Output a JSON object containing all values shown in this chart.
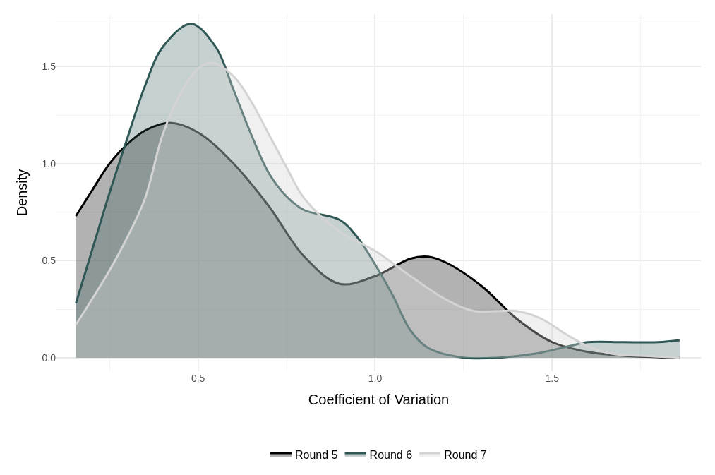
{
  "chart_data": {
    "type": "area",
    "xlabel": "Coefficient of Variation",
    "ylabel": "Density",
    "xlim": [
      0.1,
      1.92
    ],
    "xticks": [
      0.5,
      {
        "value": 1,
        "label": "1.0"
      },
      1.5
    ],
    "ylim": [
      -0.07,
      1.77
    ],
    "yticks": [
      {
        "value": 0,
        "label": "0.0"
      },
      0.5,
      {
        "value": 1,
        "label": "1.0"
      },
      1.5
    ],
    "grid": true,
    "legend": "bottom",
    "series": [
      {
        "name": "Round 5",
        "color": "#000000",
        "x": [
          0.155,
          0.2,
          0.25,
          0.3,
          0.35,
          0.42,
          0.5,
          0.6,
          0.7,
          0.8,
          0.9,
          1.0,
          1.1,
          1.15,
          1.2,
          1.3,
          1.4,
          1.5,
          1.6,
          1.7,
          1.86
        ],
        "values": [
          0.73,
          0.86,
          1.0,
          1.1,
          1.17,
          1.21,
          1.16,
          1.0,
          0.78,
          0.52,
          0.38,
          0.42,
          0.51,
          0.52,
          0.49,
          0.37,
          0.2,
          0.08,
          0.03,
          0.01,
          0.0
        ]
      },
      {
        "name": "Round 6",
        "color": "#2f5755",
        "x": [
          0.155,
          0.2,
          0.25,
          0.3,
          0.35,
          0.4,
          0.48,
          0.55,
          0.6,
          0.65,
          0.7,
          0.75,
          0.8,
          0.9,
          0.95,
          1.0,
          1.05,
          1.1,
          1.15,
          1.25,
          1.35,
          1.45,
          1.55,
          1.6,
          1.7,
          1.8,
          1.86
        ],
        "values": [
          0.28,
          0.55,
          0.85,
          1.13,
          1.4,
          1.6,
          1.72,
          1.6,
          1.38,
          1.15,
          0.95,
          0.83,
          0.76,
          0.71,
          0.62,
          0.48,
          0.32,
          0.14,
          0.05,
          0.0,
          0.0,
          0.02,
          0.06,
          0.08,
          0.08,
          0.08,
          0.09
        ]
      },
      {
        "name": "Round 7",
        "color": "#d3d3d3",
        "x": [
          0.155,
          0.2,
          0.25,
          0.3,
          0.35,
          0.4,
          0.45,
          0.5,
          0.54,
          0.6,
          0.65,
          0.7,
          0.75,
          0.8,
          0.9,
          1.0,
          1.1,
          1.2,
          1.28,
          1.4,
          1.47,
          1.54,
          1.6,
          1.67,
          1.75,
          1.86
        ],
        "values": [
          0.17,
          0.3,
          0.45,
          0.62,
          0.82,
          1.15,
          1.36,
          1.49,
          1.52,
          1.45,
          1.32,
          1.15,
          0.98,
          0.82,
          0.65,
          0.55,
          0.42,
          0.3,
          0.24,
          0.24,
          0.2,
          0.12,
          0.06,
          0.02,
          0.01,
          0.0
        ]
      }
    ]
  }
}
